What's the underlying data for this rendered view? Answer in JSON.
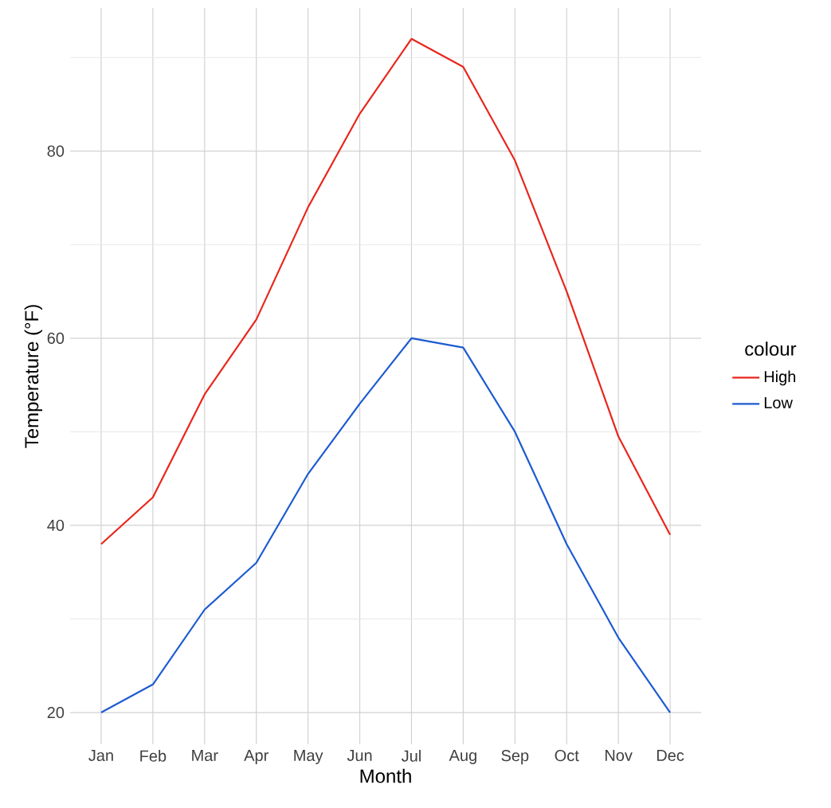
{
  "chart_data": {
    "type": "line",
    "xlabel": "Month",
    "ylabel": "Temperature (°F)",
    "legend_title": "colour",
    "categories": [
      "Jan",
      "Feb",
      "Mar",
      "Apr",
      "May",
      "Jun",
      "Jul",
      "Aug",
      "Sep",
      "Oct",
      "Nov",
      "Dec"
    ],
    "series": [
      {
        "name": "High",
        "color": "#e8261c",
        "values": [
          38,
          43,
          54,
          62,
          74,
          84,
          92,
          89,
          79,
          65,
          49.5,
          39
        ]
      },
      {
        "name": "Low",
        "color": "#1d5bd1",
        "values": [
          20,
          23,
          31,
          36,
          45.5,
          53,
          60,
          59,
          50,
          38,
          28,
          20
        ]
      }
    ],
    "ylim": [
      16.6,
      95.3
    ],
    "yticks": [
      20,
      {
        "value": 30,
        "label": null
      },
      40,
      {
        "value": 50,
        "label": null
      },
      60,
      {
        "value": 70,
        "label": null
      },
      80,
      {
        "value": 90,
        "label": null
      }
    ],
    "grid": true,
    "legend": "right"
  }
}
